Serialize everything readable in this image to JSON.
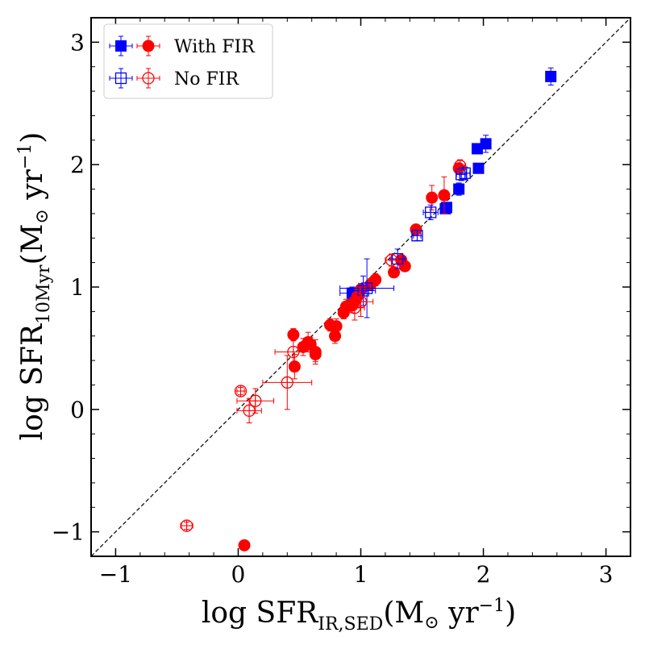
{
  "chart_data": {
    "type": "scatter",
    "title": "",
    "xlabel": {
      "main": "log SFR",
      "sub": "IR,SED",
      "unit_open": "(M",
      "unit_sun": "⊙",
      "unit_mid": " yr",
      "unit_exp": "−1",
      "unit_close": ")"
    },
    "ylabel": {
      "main": "log SFR",
      "sub": "10Myr",
      "unit_open": "(M",
      "unit_sun": "⊙",
      "unit_mid": " yr",
      "unit_exp": "−1",
      "unit_close": ")"
    },
    "xlim": [
      -1.2,
      3.2
    ],
    "ylim": [
      -1.2,
      3.2
    ],
    "xticks": [
      {
        "v": -1,
        "label": "−1"
      },
      {
        "v": 0,
        "label": "0"
      },
      {
        "v": 1,
        "label": "1"
      },
      {
        "v": 2,
        "label": "2"
      },
      {
        "v": 3,
        "label": "3"
      }
    ],
    "yticks": [
      {
        "v": -1,
        "label": "−1"
      },
      {
        "v": 0,
        "label": "0"
      },
      {
        "v": 1,
        "label": "1"
      },
      {
        "v": 2,
        "label": "2"
      },
      {
        "v": 3,
        "label": "3"
      }
    ],
    "one_to_one_line": true,
    "legend": {
      "placement": "top-left",
      "entries": [
        {
          "label": "With FIR",
          "filled": true
        },
        {
          "label": "No FIR",
          "filled": false
        }
      ]
    },
    "colors": {
      "blue": "#0000ff",
      "red": "#ff0000",
      "line": "#000000"
    },
    "series": [
      {
        "name": "With FIR (blue squares)",
        "marker": "square",
        "filled": true,
        "color": "blue",
        "points": [
          {
            "x": 2.55,
            "y": 2.72,
            "yerr": 0.07
          },
          {
            "x": 2.02,
            "y": 2.17,
            "yerr": 0.07
          },
          {
            "x": 1.95,
            "y": 2.13,
            "yerr": 0.04
          },
          {
            "x": 1.96,
            "y": 1.97,
            "yerr": 0.04
          },
          {
            "x": 1.8,
            "y": 1.8,
            "yerr": 0.05
          },
          {
            "x": 1.7,
            "y": 1.65,
            "yerr": 0.04
          },
          {
            "x": 1.69,
            "y": 1.64,
            "yerr": 0.04
          },
          {
            "x": 0.93,
            "y": 0.95,
            "yerr": 0.05,
            "xerr": 0.1
          }
        ]
      },
      {
        "name": "With FIR (red circles)",
        "marker": "circle",
        "filled": true,
        "color": "red",
        "points": [
          {
            "x": 1.8,
            "y": 1.97,
            "yerr": 0.04
          },
          {
            "x": 1.68,
            "y": 1.75,
            "yerr": 0.15
          },
          {
            "x": 1.58,
            "y": 1.73,
            "yerr": 0.1
          },
          {
            "x": 1.45,
            "y": 1.47,
            "yerr": 0.04
          },
          {
            "x": 1.36,
            "y": 1.17,
            "yerr": 0.04
          },
          {
            "x": 1.33,
            "y": 1.22,
            "yerr": 0.04
          },
          {
            "x": 1.27,
            "y": 1.12,
            "yerr": 0.04
          },
          {
            "x": 1.12,
            "y": 1.06,
            "yerr": 0.05
          },
          {
            "x": 1.08,
            "y": 1.02,
            "yerr": 0.05
          },
          {
            "x": 1.0,
            "y": 0.98,
            "yerr": 0.05
          },
          {
            "x": 0.97,
            "y": 0.92,
            "yerr": 0.06
          },
          {
            "x": 0.95,
            "y": 0.88,
            "yerr": 0.06
          },
          {
            "x": 0.93,
            "y": 0.85,
            "yerr": 0.06
          },
          {
            "x": 0.88,
            "y": 0.84,
            "yerr": 0.06
          },
          {
            "x": 0.86,
            "y": 0.79,
            "yerr": 0.05
          },
          {
            "x": 0.8,
            "y": 0.68,
            "yerr": 0.06
          },
          {
            "x": 0.79,
            "y": 0.6,
            "yerr": 0.06
          },
          {
            "x": 0.75,
            "y": 0.69,
            "yerr": 0.05
          },
          {
            "x": 0.63,
            "y": 0.47,
            "yerr": 0.1
          },
          {
            "x": 0.63,
            "y": 0.45,
            "yerr": 0.06
          },
          {
            "x": 0.59,
            "y": 0.53,
            "yerr": 0.06
          },
          {
            "x": 0.57,
            "y": 0.55,
            "yerr": 0.08
          },
          {
            "x": 0.53,
            "y": 0.51,
            "yerr": 0.07
          },
          {
            "x": 0.45,
            "y": 0.61,
            "yerr": 0.05
          },
          {
            "x": 0.46,
            "y": 0.35,
            "yerr": 0.1
          },
          {
            "x": 0.05,
            "y": -1.11,
            "yerr": 0.03
          }
        ]
      },
      {
        "name": "No FIR (blue squares)",
        "marker": "square",
        "filled": false,
        "color": "blue",
        "points": [
          {
            "x": 1.85,
            "y": 1.93,
            "yerr": 0.05,
            "xerr": 0.04
          },
          {
            "x": 1.82,
            "y": 1.92,
            "yerr": 0.05,
            "xerr": 0.04
          },
          {
            "x": 1.57,
            "y": 1.61,
            "yerr": 0.06,
            "xerr": 0.06
          },
          {
            "x": 1.46,
            "y": 1.42,
            "yerr": 0.04,
            "xerr": 0.03
          },
          {
            "x": 1.3,
            "y": 1.23,
            "yerr": 0.08,
            "xerr": 0.06
          },
          {
            "x": 1.05,
            "y": 0.99,
            "yerr": 0.24,
            "xerr": 0.22
          },
          {
            "x": 1.02,
            "y": 0.97,
            "yerr": 0.12,
            "xerr": 0.1
          }
        ]
      },
      {
        "name": "No FIR (red circles)",
        "marker": "circle",
        "filled": false,
        "color": "red",
        "points": [
          {
            "x": 1.81,
            "y": 1.99,
            "yerr": 0.05,
            "xerr": 0.04
          },
          {
            "x": 1.25,
            "y": 1.22,
            "yerr": 0.05,
            "xerr": 0.05
          },
          {
            "x": 1.0,
            "y": 0.88,
            "yerr": 0.12,
            "xerr": 0.1
          },
          {
            "x": 0.95,
            "y": 0.83,
            "yerr": 0.1,
            "xerr": 0.08
          },
          {
            "x": 0.45,
            "y": 0.47,
            "yerr": 0.1,
            "xerr": 0.15
          },
          {
            "x": 0.4,
            "y": 0.22,
            "yerr": 0.22,
            "xerr": 0.2
          },
          {
            "x": 0.14,
            "y": 0.07,
            "yerr": 0.1,
            "xerr": 0.15
          },
          {
            "x": 0.09,
            "y": -0.01,
            "yerr": 0.1,
            "xerr": 0.1
          },
          {
            "x": 0.02,
            "y": 0.15,
            "yerr": 0.03,
            "xerr": 0.03
          },
          {
            "x": -0.42,
            "y": -0.95,
            "yerr": 0.03,
            "xerr": 0.05
          }
        ]
      }
    ]
  }
}
